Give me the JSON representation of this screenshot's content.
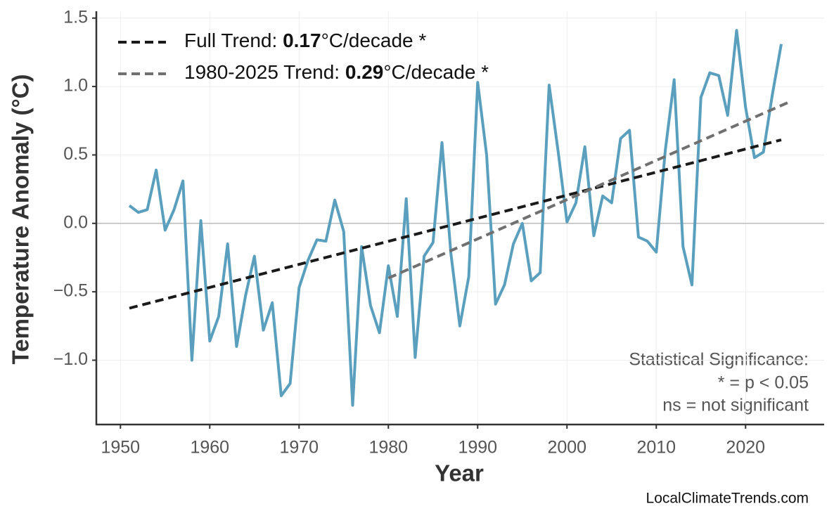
{
  "chart_data": {
    "type": "line",
    "ylabel": "Temperature Anomaly (°C)",
    "xlabel": "Year",
    "xlim": [
      1947.3,
      2028.8
    ],
    "ylim": [
      -1.47,
      1.55
    ],
    "xticks": [
      1950,
      1960,
      1970,
      1980,
      1990,
      2000,
      2010,
      2020
    ],
    "yticks": [
      {
        "value": -1.0,
        "label": "−1.0"
      },
      {
        "value": -0.5,
        "label": "−0.5"
      },
      {
        "value": 0,
        "label": "0.0"
      },
      0.5,
      {
        "value": 1.0,
        "label": "1.0"
      },
      1.5
    ],
    "grid": true,
    "reference_line": 0,
    "series": [
      {
        "color": "#5a9fbd",
        "style": "solid",
        "x": [
          1951,
          1952,
          1953,
          1954,
          1955,
          1956,
          1957,
          1958,
          1959,
          1960,
          1961,
          1962,
          1963,
          1964,
          1965,
          1966,
          1967,
          1968,
          1969,
          1970,
          1971,
          1972,
          1973,
          1974,
          1975,
          1976,
          1977,
          1978,
          1979,
          1980,
          1981,
          1982,
          1983,
          1984,
          1985,
          1986,
          1987,
          1988,
          1989,
          1990,
          1991,
          1992,
          1993,
          1994,
          1995,
          1996,
          1997,
          1998,
          1999,
          2000,
          2001,
          2002,
          2003,
          2004,
          2005,
          2006,
          2007,
          2008,
          2009,
          2010,
          2011,
          2012,
          2013,
          2014,
          2015,
          2016,
          2017,
          2018,
          2019,
          2020,
          2021,
          2022,
          2023,
          2024
        ],
        "values": [
          0.13,
          0.08,
          0.1,
          0.39,
          -0.05,
          0.1,
          0.31,
          -1.0,
          0.02,
          -0.86,
          -0.68,
          -0.15,
          -0.9,
          -0.53,
          -0.24,
          -0.78,
          -0.58,
          -1.26,
          -1.17,
          -0.47,
          -0.27,
          -0.12,
          -0.13,
          0.17,
          -0.06,
          -1.33,
          -0.17,
          -0.6,
          -0.8,
          -0.31,
          -0.68,
          0.18,
          -0.98,
          -0.24,
          -0.14,
          0.59,
          -0.22,
          -0.75,
          -0.39,
          1.03,
          0.5,
          -0.59,
          -0.45,
          -0.15,
          0.0,
          -0.42,
          -0.36,
          1.01,
          0.53,
          0.01,
          0.15,
          0.56,
          -0.09,
          0.2,
          0.15,
          0.62,
          0.68,
          -0.1,
          -0.13,
          -0.21,
          0.53,
          1.05,
          -0.17,
          -0.45,
          0.92,
          1.1,
          1.08,
          0.79,
          1.41,
          0.85,
          0.48,
          0.52,
          0.94,
          1.31
        ]
      },
      {
        "color": "#1a1a1a",
        "style": "dashed",
        "label_prefix": "Full Trend: ",
        "rate": 0.17,
        "label_suffix": "°C/decade *",
        "x": [
          1951,
          2024
        ],
        "values": [
          -0.62,
          0.61
        ]
      },
      {
        "color": "#707070",
        "style": "dashed",
        "label_prefix": "1980-2025 Trend: ",
        "rate": 0.29,
        "label_suffix": "°C/decade *",
        "x": [
          1980,
          2025
        ],
        "values": [
          -0.4,
          0.89
        ]
      }
    ],
    "annotations": [
      "Statistical Significance:",
      "* = p < 0.05",
      "ns = not significant"
    ],
    "source": "LocalClimateTrends.com"
  }
}
